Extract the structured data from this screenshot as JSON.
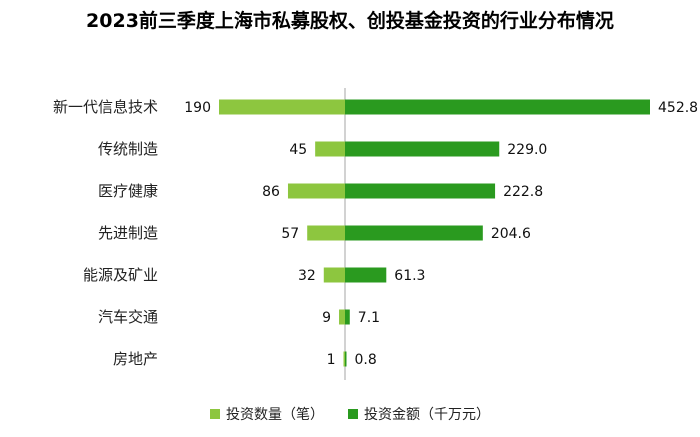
{
  "chart_data": {
    "type": "bar",
    "orientation": "horizontal-diverging",
    "title": "2023前三季度上海市私募股权、创投基金投资的行业分布情况",
    "categories": [
      "新一代信息技术",
      "传统制造",
      "医疗健康",
      "先进制造",
      "能源及矿业",
      "汽车交通",
      "房地产"
    ],
    "series": [
      {
        "name": "投资数量（笔）",
        "values": [
          190,
          45,
          86,
          57,
          32,
          9,
          1
        ],
        "color": "#8dc63f",
        "side": "left"
      },
      {
        "name": "投资金额（千万元）",
        "values": [
          452.8,
          229.0,
          222.8,
          204.6,
          61.3,
          7.1,
          0.8
        ],
        "color": "#2a9a1f",
        "side": "right"
      }
    ],
    "value_labels": {
      "left": [
        "190",
        "45",
        "86",
        "57",
        "32",
        "9",
        "1"
      ],
      "right": [
        "452.8",
        "229.0",
        "222.8",
        "204.6",
        "61.3",
        "7.1",
        "0.8"
      ]
    },
    "legend_position": "bottom-center",
    "grid": false
  }
}
